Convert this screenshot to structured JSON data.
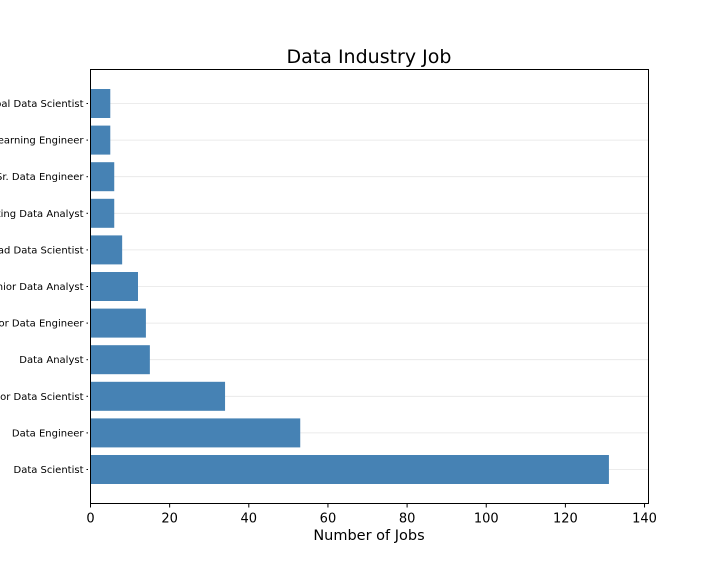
{
  "chart_data": {
    "type": "bar",
    "orientation": "horizontal",
    "title": "Data Industry Job",
    "xlabel": "Number of Jobs",
    "ylabel": "",
    "categories": [
      "Data Scientist",
      "Data Engineer",
      "Senior Data Scientist",
      "Data Analyst",
      "Senior Data Engineer",
      "Senior Data Analyst",
      "Lead Data Scientist",
      "Marketing Data Analyst",
      "Sr. Data Engineer",
      "Machine Learning Engineer",
      "Principal Data Scientist"
    ],
    "values": [
      131,
      53,
      34,
      15,
      14,
      12,
      8,
      6,
      6,
      5,
      5
    ],
    "xlim": [
      0,
      141
    ],
    "xticks": [
      0,
      20,
      40,
      60,
      80,
      100,
      120,
      140
    ],
    "grid": "x-gridlines faint",
    "bar_color": "#4682b4"
  }
}
